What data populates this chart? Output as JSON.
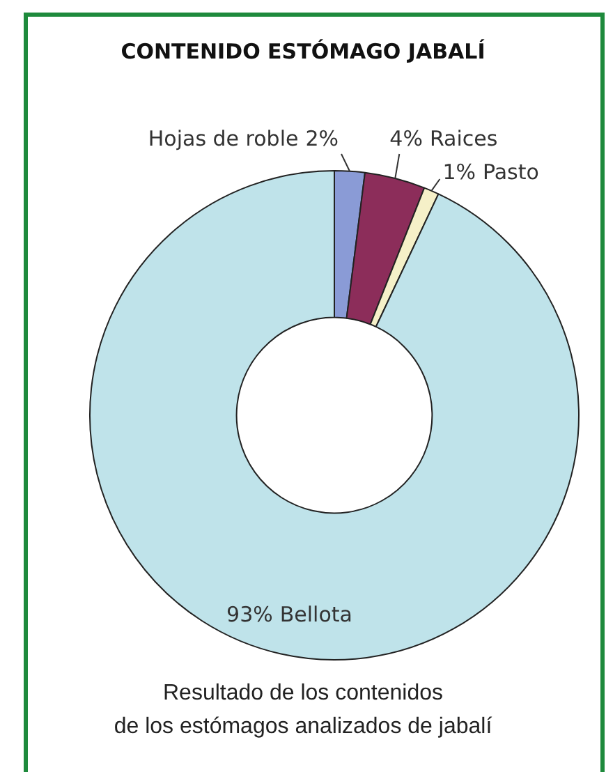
{
  "chart_data": {
    "type": "donut",
    "title": "CONTENIDO ESTÓMAGO JABALÍ",
    "categories": [
      "Hojas de roble",
      "Raices",
      "Pasto",
      "Bellota"
    ],
    "values": [
      2,
      4,
      1,
      93
    ],
    "colors": [
      "#8a9bd6",
      "#8c2d5a",
      "#f5f0c8",
      "#bfe3ea"
    ],
    "value_labels": [
      "2%",
      "4%",
      "1%",
      "93%"
    ],
    "annotations": [
      "Resultado de los contenidos\nde los estómagos analizados de jabalí"
    ]
  }
}
